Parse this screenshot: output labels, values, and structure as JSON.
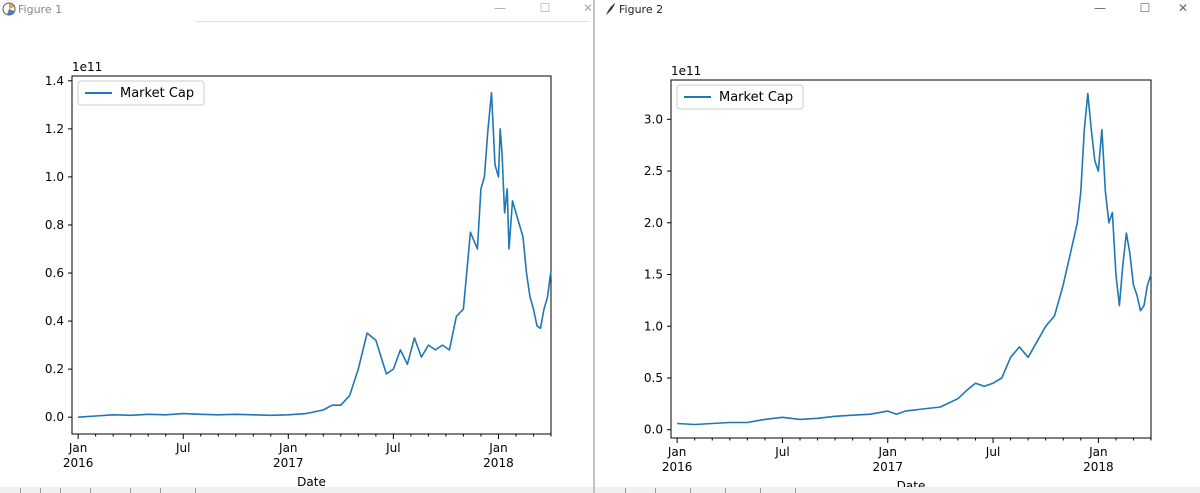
{
  "windows": [
    {
      "title": "Figure 1",
      "controls": {
        "minimize": "—",
        "maximize": "☐",
        "close": "✕"
      },
      "chart_data": {
        "type": "line",
        "title": "",
        "xlabel": "Date",
        "ylabel": "",
        "offset_text": "1e11",
        "yticks": [
          0.0,
          0.2,
          0.4,
          0.6,
          0.8,
          1.0,
          1.2,
          1.4
        ],
        "ytick_labels": [
          "0.0",
          "0.2",
          "0.4",
          "0.6",
          "0.8",
          "1.0",
          "1.2",
          "1.4"
        ],
        "ylim": [
          -0.07,
          1.42
        ],
        "xlim": [
          -0.35,
          27.0
        ],
        "xticks": [
          {
            "pos": 0,
            "label": "Jan",
            "year": "2016"
          },
          {
            "pos": 6,
            "label": "Jul",
            "year": ""
          },
          {
            "pos": 12,
            "label": "Jan",
            "year": "2017"
          },
          {
            "pos": 18,
            "label": "Jul",
            "year": ""
          },
          {
            "pos": 24,
            "label": "Jan",
            "year": "2018"
          }
        ],
        "legend": {
          "label": "Market Cap",
          "placement": "upper left"
        },
        "series": [
          {
            "name": "Market Cap",
            "x": [
              0,
              1,
              2,
              3,
              4,
              5,
              6,
              7,
              8,
              9,
              10,
              11,
              12,
              13,
              14,
              14.5,
              15,
              15.5,
              16,
              16.5,
              17,
              17.3,
              17.6,
              18,
              18.4,
              18.8,
              19.2,
              19.6,
              20,
              20.4,
              20.8,
              21.2,
              21.6,
              22,
              22.4,
              22.8,
              23,
              23.2,
              23.4,
              23.6,
              23.8,
              24,
              24.1,
              24.2,
              24.35,
              24.5,
              24.6,
              24.8,
              25,
              25.2,
              25.4,
              25.6,
              25.8,
              26,
              26.2,
              26.4,
              26.6,
              26.8,
              27
            ],
            "values": [
              0.0,
              0.005,
              0.01,
              0.008,
              0.012,
              0.01,
              0.015,
              0.012,
              0.01,
              0.012,
              0.01,
              0.008,
              0.01,
              0.015,
              0.03,
              0.05,
              0.05,
              0.09,
              0.2,
              0.35,
              0.32,
              0.25,
              0.18,
              0.2,
              0.28,
              0.22,
              0.33,
              0.25,
              0.3,
              0.28,
              0.3,
              0.28,
              0.42,
              0.45,
              0.77,
              0.7,
              0.95,
              1.0,
              1.2,
              1.35,
              1.05,
              1.0,
              1.2,
              1.1,
              0.85,
              0.95,
              0.7,
              0.9,
              0.85,
              0.8,
              0.75,
              0.6,
              0.5,
              0.45,
              0.38,
              0.37,
              0.45,
              0.5,
              0.61
            ]
          }
        ]
      }
    },
    {
      "title": "Figure 2",
      "controls": {
        "minimize": "—",
        "maximize": "☐",
        "close": "✕"
      },
      "chart_data": {
        "type": "line",
        "title": "",
        "xlabel": "Date",
        "ylabel": "",
        "offset_text": "1e11",
        "yticks": [
          0.0,
          0.5,
          1.0,
          1.5,
          2.0,
          2.5,
          3.0
        ],
        "ytick_labels": [
          "0.0",
          "0.5",
          "1.0",
          "1.5",
          "2.0",
          "2.5",
          "3.0"
        ],
        "ylim": [
          -0.08,
          3.38
        ],
        "xlim": [
          -0.35,
          27.0
        ],
        "xticks": [
          {
            "pos": 0,
            "label": "Jan",
            "year": "2016"
          },
          {
            "pos": 6,
            "label": "Jul",
            "year": ""
          },
          {
            "pos": 12,
            "label": "Jan",
            "year": "2017"
          },
          {
            "pos": 18,
            "label": "Jul",
            "year": ""
          },
          {
            "pos": 24,
            "label": "Jan",
            "year": "2018"
          }
        ],
        "legend": {
          "label": "Market Cap",
          "placement": "upper left"
        },
        "series": [
          {
            "name": "Market Cap",
            "x": [
              0,
              1,
              2,
              3,
              4,
              5,
              6,
              7,
              8,
              9,
              10,
              11,
              12,
              12.5,
              13,
              14,
              15,
              16,
              16.5,
              17,
              17.5,
              18,
              18.5,
              19,
              19.5,
              20,
              20.5,
              21,
              21.5,
              22,
              22.4,
              22.8,
              23,
              23.2,
              23.4,
              23.6,
              23.8,
              24,
              24.2,
              24.4,
              24.6,
              24.8,
              25,
              25.2,
              25.4,
              25.6,
              25.8,
              26,
              26.2,
              26.4,
              26.6,
              26.8,
              27
            ],
            "values": [
              0.06,
              0.05,
              0.06,
              0.07,
              0.07,
              0.1,
              0.12,
              0.1,
              0.11,
              0.13,
              0.14,
              0.15,
              0.18,
              0.15,
              0.18,
              0.2,
              0.22,
              0.3,
              0.38,
              0.45,
              0.42,
              0.45,
              0.5,
              0.7,
              0.8,
              0.7,
              0.85,
              1.0,
              1.1,
              1.4,
              1.7,
              2.0,
              2.3,
              2.9,
              3.25,
              2.9,
              2.6,
              2.5,
              2.9,
              2.3,
              2.0,
              2.1,
              1.5,
              1.2,
              1.6,
              1.9,
              1.7,
              1.4,
              1.3,
              1.15,
              1.2,
              1.4,
              1.5
            ]
          }
        ]
      }
    }
  ]
}
